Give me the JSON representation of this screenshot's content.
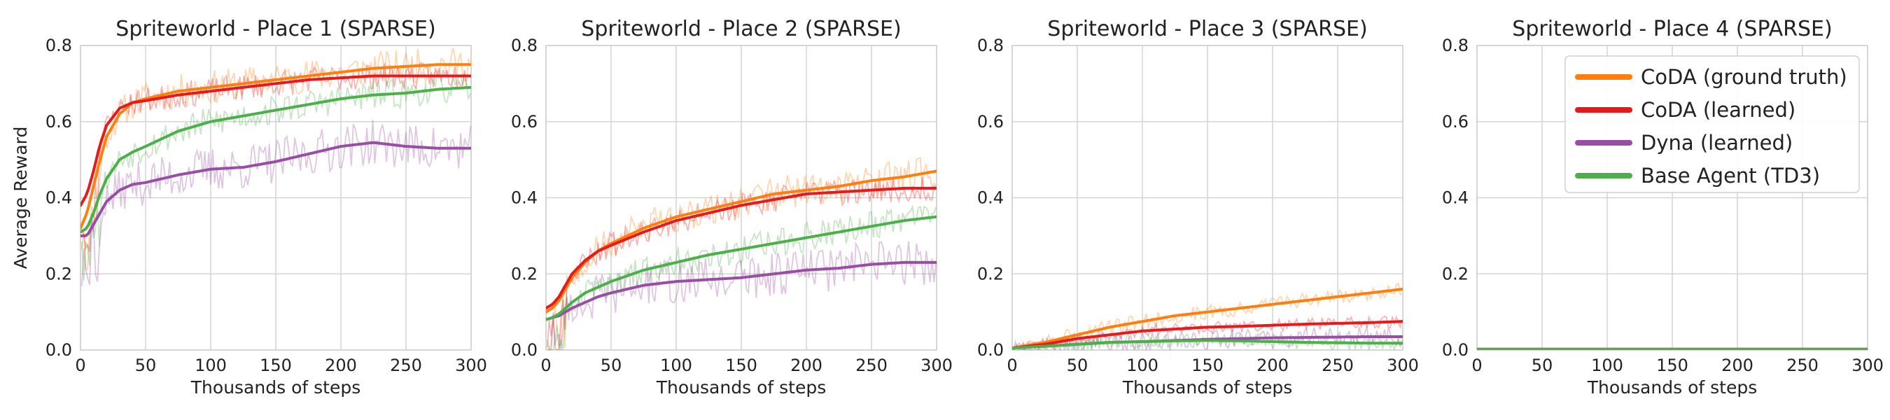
{
  "chart_data": [
    {
      "type": "line",
      "title": "Spriteworld - Place 1 (SPARSE)",
      "xlabel": "Thousands of steps",
      "ylabel": "Average Reward",
      "xlim": [
        0,
        300
      ],
      "ylim": [
        0,
        0.8
      ],
      "xticks": [
        "0",
        "50",
        "100",
        "150",
        "200",
        "250",
        "300"
      ],
      "yticks": [
        "0.0",
        "0.2",
        "0.4",
        "0.6",
        "0.8"
      ],
      "x": [
        0,
        5,
        10,
        15,
        20,
        30,
        40,
        50,
        75,
        100,
        125,
        150,
        175,
        200,
        225,
        250,
        275,
        300
      ],
      "series": [
        {
          "name": "CoDA (ground truth)",
          "color": "#ff7f0e",
          "values": [
            0.32,
            0.36,
            0.43,
            0.5,
            0.56,
            0.62,
            0.65,
            0.66,
            0.68,
            0.69,
            0.7,
            0.71,
            0.72,
            0.73,
            0.74,
            0.745,
            0.75,
            0.75
          ]
        },
        {
          "name": "CoDA (learned)",
          "color": "#e41a1c",
          "values": [
            0.38,
            0.41,
            0.47,
            0.54,
            0.59,
            0.635,
            0.65,
            0.655,
            0.67,
            0.68,
            0.69,
            0.7,
            0.71,
            0.715,
            0.72,
            0.72,
            0.72,
            0.72
          ]
        },
        {
          "name": "Dyna (learned)",
          "color": "#984ea3",
          "values": [
            0.3,
            0.3,
            0.33,
            0.36,
            0.39,
            0.42,
            0.435,
            0.44,
            0.46,
            0.475,
            0.48,
            0.495,
            0.515,
            0.535,
            0.545,
            0.535,
            0.53,
            0.53
          ]
        },
        {
          "name": "Base Agent (TD3)",
          "color": "#4daf4a",
          "values": [
            0.31,
            0.32,
            0.36,
            0.41,
            0.45,
            0.5,
            0.52,
            0.535,
            0.575,
            0.6,
            0.615,
            0.63,
            0.645,
            0.66,
            0.67,
            0.675,
            0.685,
            0.69
          ]
        }
      ]
    },
    {
      "type": "line",
      "title": "Spriteworld - Place 2 (SPARSE)",
      "xlabel": "Thousands of steps",
      "ylabel": "",
      "xlim": [
        0,
        300
      ],
      "ylim": [
        0,
        0.8
      ],
      "xticks": [
        "0",
        "50",
        "100",
        "150",
        "200",
        "250",
        "300"
      ],
      "yticks": [
        "0.0",
        "0.2",
        "0.4",
        "0.6",
        "0.8"
      ],
      "x": [
        0,
        5,
        10,
        15,
        20,
        30,
        40,
        50,
        75,
        100,
        125,
        150,
        175,
        200,
        225,
        250,
        275,
        300
      ],
      "series": [
        {
          "name": "CoDA (ground truth)",
          "color": "#ff7f0e",
          "values": [
            0.1,
            0.11,
            0.13,
            0.16,
            0.19,
            0.23,
            0.26,
            0.28,
            0.32,
            0.35,
            0.37,
            0.39,
            0.41,
            0.42,
            0.43,
            0.445,
            0.455,
            0.47
          ]
        },
        {
          "name": "CoDA (learned)",
          "color": "#e41a1c",
          "values": [
            0.11,
            0.12,
            0.14,
            0.17,
            0.2,
            0.235,
            0.26,
            0.275,
            0.31,
            0.34,
            0.36,
            0.38,
            0.395,
            0.41,
            0.415,
            0.42,
            0.425,
            0.425
          ]
        },
        {
          "name": "Dyna (learned)",
          "color": "#984ea3",
          "values": [
            0.08,
            0.085,
            0.09,
            0.1,
            0.11,
            0.125,
            0.14,
            0.15,
            0.17,
            0.18,
            0.185,
            0.19,
            0.2,
            0.21,
            0.215,
            0.225,
            0.23,
            0.23
          ]
        },
        {
          "name": "Base Agent (TD3)",
          "color": "#4daf4a",
          "values": [
            0.08,
            0.085,
            0.095,
            0.11,
            0.125,
            0.15,
            0.165,
            0.18,
            0.21,
            0.23,
            0.25,
            0.265,
            0.28,
            0.295,
            0.31,
            0.325,
            0.34,
            0.35
          ]
        }
      ]
    },
    {
      "type": "line",
      "title": "Spriteworld - Place 3 (SPARSE)",
      "xlabel": "Thousands of steps",
      "ylabel": "",
      "xlim": [
        0,
        300
      ],
      "ylim": [
        0,
        0.8
      ],
      "xticks": [
        "0",
        "50",
        "100",
        "150",
        "200",
        "250",
        "300"
      ],
      "yticks": [
        "0.0",
        "0.2",
        "0.4",
        "0.6",
        "0.8"
      ],
      "x": [
        0,
        25,
        50,
        75,
        100,
        125,
        150,
        175,
        200,
        225,
        250,
        275,
        300
      ],
      "series": [
        {
          "name": "CoDA (ground truth)",
          "color": "#ff7f0e",
          "values": [
            0.005,
            0.02,
            0.04,
            0.06,
            0.075,
            0.09,
            0.1,
            0.11,
            0.12,
            0.13,
            0.14,
            0.15,
            0.16
          ]
        },
        {
          "name": "CoDA (learned)",
          "color": "#e41a1c",
          "values": [
            0.005,
            0.015,
            0.03,
            0.04,
            0.05,
            0.055,
            0.06,
            0.062,
            0.065,
            0.068,
            0.07,
            0.072,
            0.075
          ]
        },
        {
          "name": "Dyna (learned)",
          "color": "#984ea3",
          "values": [
            0.005,
            0.01,
            0.015,
            0.02,
            0.022,
            0.025,
            0.028,
            0.03,
            0.032,
            0.033,
            0.034,
            0.035,
            0.035
          ]
        },
        {
          "name": "Base Agent (TD3)",
          "color": "#4daf4a",
          "values": [
            0.005,
            0.01,
            0.015,
            0.02,
            0.022,
            0.024,
            0.025,
            0.024,
            0.022,
            0.02,
            0.019,
            0.018,
            0.018
          ]
        }
      ]
    },
    {
      "type": "line",
      "title": "Spriteworld - Place 4 (SPARSE)",
      "xlabel": "Thousands of steps",
      "ylabel": "",
      "xlim": [
        0,
        300
      ],
      "ylim": [
        0,
        0.8
      ],
      "xticks": [
        "0",
        "50",
        "100",
        "150",
        "200",
        "250",
        "300"
      ],
      "yticks": [
        "0.0",
        "0.2",
        "0.4",
        "0.6",
        "0.8"
      ],
      "x": [
        0,
        50,
        100,
        150,
        200,
        250,
        300
      ],
      "series": [
        {
          "name": "CoDA (ground truth)",
          "color": "#ff7f0e",
          "values": [
            0.002,
            0.002,
            0.002,
            0.002,
            0.002,
            0.002,
            0.002
          ]
        },
        {
          "name": "CoDA (learned)",
          "color": "#e41a1c",
          "values": [
            0.002,
            0.002,
            0.002,
            0.002,
            0.002,
            0.002,
            0.002
          ]
        },
        {
          "name": "Dyna (learned)",
          "color": "#984ea3",
          "values": [
            0.002,
            0.002,
            0.002,
            0.002,
            0.002,
            0.002,
            0.002
          ]
        },
        {
          "name": "Base Agent (TD3)",
          "color": "#4daf4a",
          "values": [
            0.002,
            0.002,
            0.002,
            0.002,
            0.002,
            0.002,
            0.002
          ]
        }
      ],
      "legend": {
        "position": "upper-right",
        "entries": [
          "CoDA (ground truth)",
          "CoDA (learned)",
          "Dyna (learned)",
          "Base Agent (TD3)"
        ]
      }
    }
  ]
}
